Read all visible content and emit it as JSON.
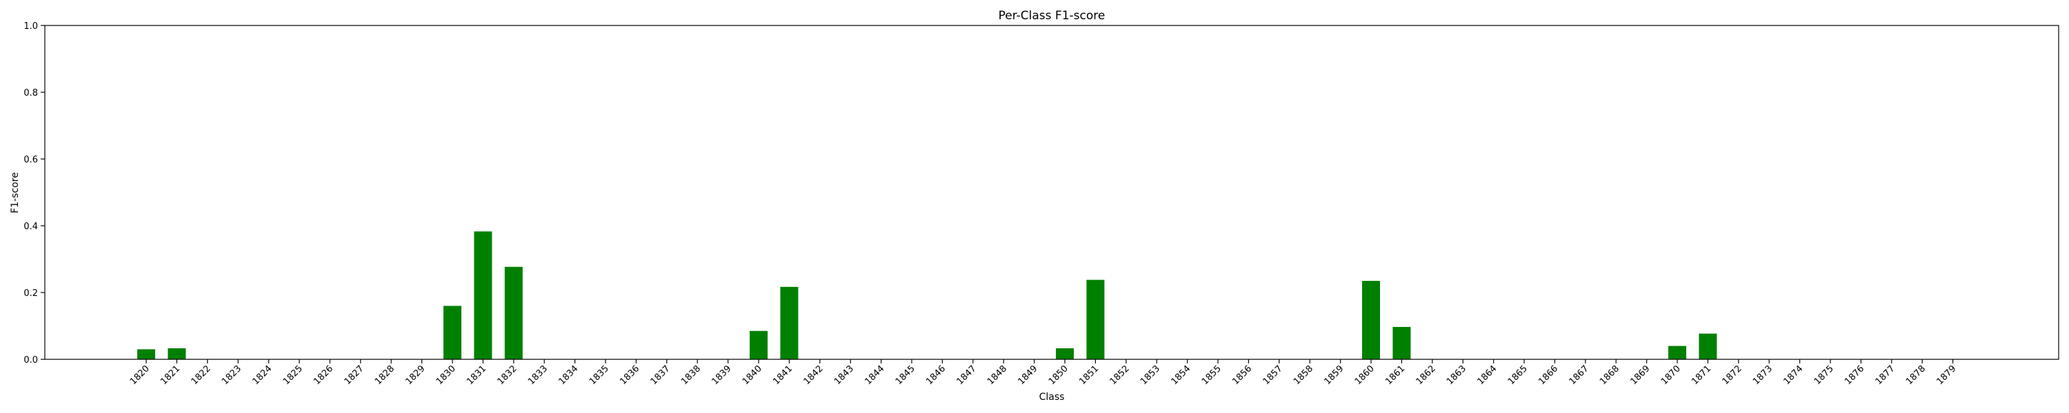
{
  "chart_data": {
    "type": "bar",
    "title": "Per-Class F1-score",
    "xlabel": "Class",
    "ylabel": "F1-score",
    "ylim": [
      0,
      1.0
    ],
    "yticks": [
      "0.0",
      "0.2",
      "0.4",
      "0.6",
      "0.8",
      "1.0"
    ],
    "grid": false,
    "bar_color": "#008000",
    "categories": [
      "1820",
      "1821",
      "1822",
      "1823",
      "1824",
      "1825",
      "1826",
      "1827",
      "1828",
      "1829",
      "1830",
      "1831",
      "1832",
      "1833",
      "1834",
      "1835",
      "1836",
      "1837",
      "1838",
      "1839",
      "1840",
      "1841",
      "1842",
      "1843",
      "1844",
      "1845",
      "1846",
      "1847",
      "1848",
      "1849",
      "1850",
      "1851",
      "1852",
      "1853",
      "1854",
      "1855",
      "1856",
      "1857",
      "1858",
      "1859",
      "1860",
      "1861",
      "1862",
      "1863",
      "1864",
      "1865",
      "1866",
      "1867",
      "1868",
      "1869",
      "1870",
      "1871",
      "1872",
      "1873",
      "1874",
      "1875",
      "1876",
      "1877",
      "1878",
      "1879"
    ],
    "values": [
      0.03,
      0.033,
      0,
      0,
      0,
      0,
      0,
      0,
      0,
      0,
      0.16,
      0.383,
      0.277,
      0,
      0,
      0,
      0,
      0,
      0,
      0,
      0.085,
      0.217,
      0,
      0,
      0,
      0,
      0,
      0,
      0,
      0,
      0.033,
      0.238,
      0,
      0,
      0,
      0,
      0,
      0,
      0,
      0,
      0.235,
      0.097,
      0,
      0,
      0,
      0,
      0,
      0,
      0,
      0,
      0.04,
      0.077,
      0,
      0,
      0,
      0,
      0,
      0,
      0,
      0
    ]
  }
}
